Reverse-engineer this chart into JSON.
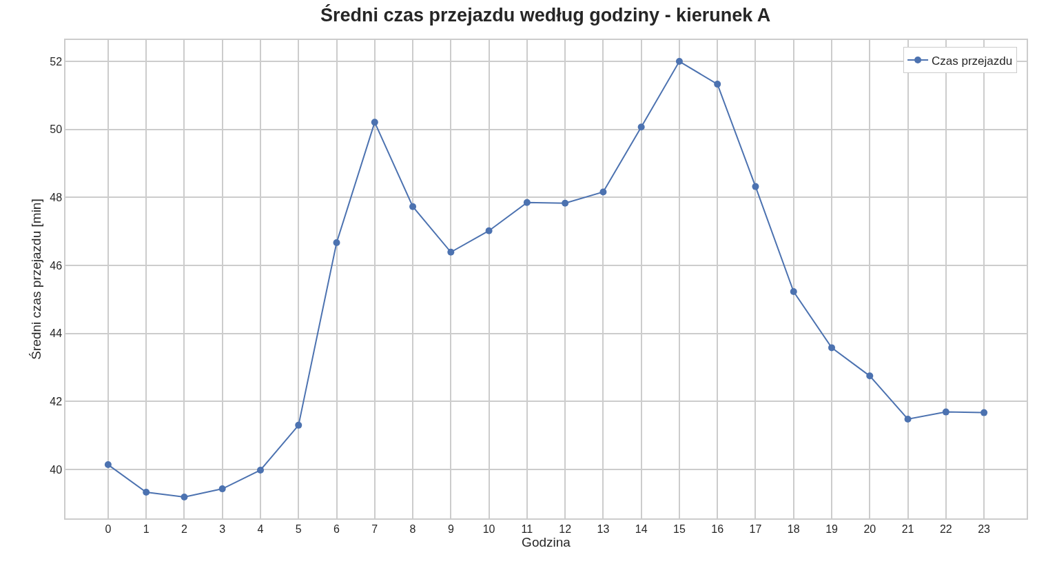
{
  "chart_data": {
    "type": "line",
    "title": "Średni czas przejazdu według godziny - kierunek A",
    "xlabel": "Godzina",
    "ylabel": "Średni czas przejazdu [min]",
    "x": [
      0,
      1,
      2,
      3,
      4,
      5,
      6,
      7,
      8,
      9,
      10,
      11,
      12,
      13,
      14,
      15,
      16,
      17,
      18,
      19,
      20,
      21,
      22,
      23
    ],
    "series": [
      {
        "name": "Czas przejazdu",
        "color": "#4c72b0",
        "values": [
          40.14,
          39.33,
          39.19,
          39.43,
          39.98,
          41.3,
          46.67,
          50.21,
          47.73,
          46.39,
          47.02,
          47.85,
          47.83,
          48.16,
          50.07,
          52.0,
          51.33,
          48.32,
          45.23,
          43.58,
          42.75,
          41.48,
          41.69,
          41.67
        ]
      }
    ],
    "xlim": [
      -1.12,
      24.12
    ],
    "xticks": [
      0,
      1,
      2,
      3,
      4,
      5,
      6,
      7,
      8,
      9,
      10,
      11,
      12,
      13,
      14,
      15,
      16,
      17,
      18,
      19,
      20,
      21,
      22,
      23
    ],
    "ylim": [
      38.56,
      52.63
    ],
    "yticks": [
      40,
      42,
      44,
      46,
      48,
      50,
      52
    ],
    "grid": true,
    "legend": "top right",
    "marker": "circle",
    "line_style": "solid"
  }
}
